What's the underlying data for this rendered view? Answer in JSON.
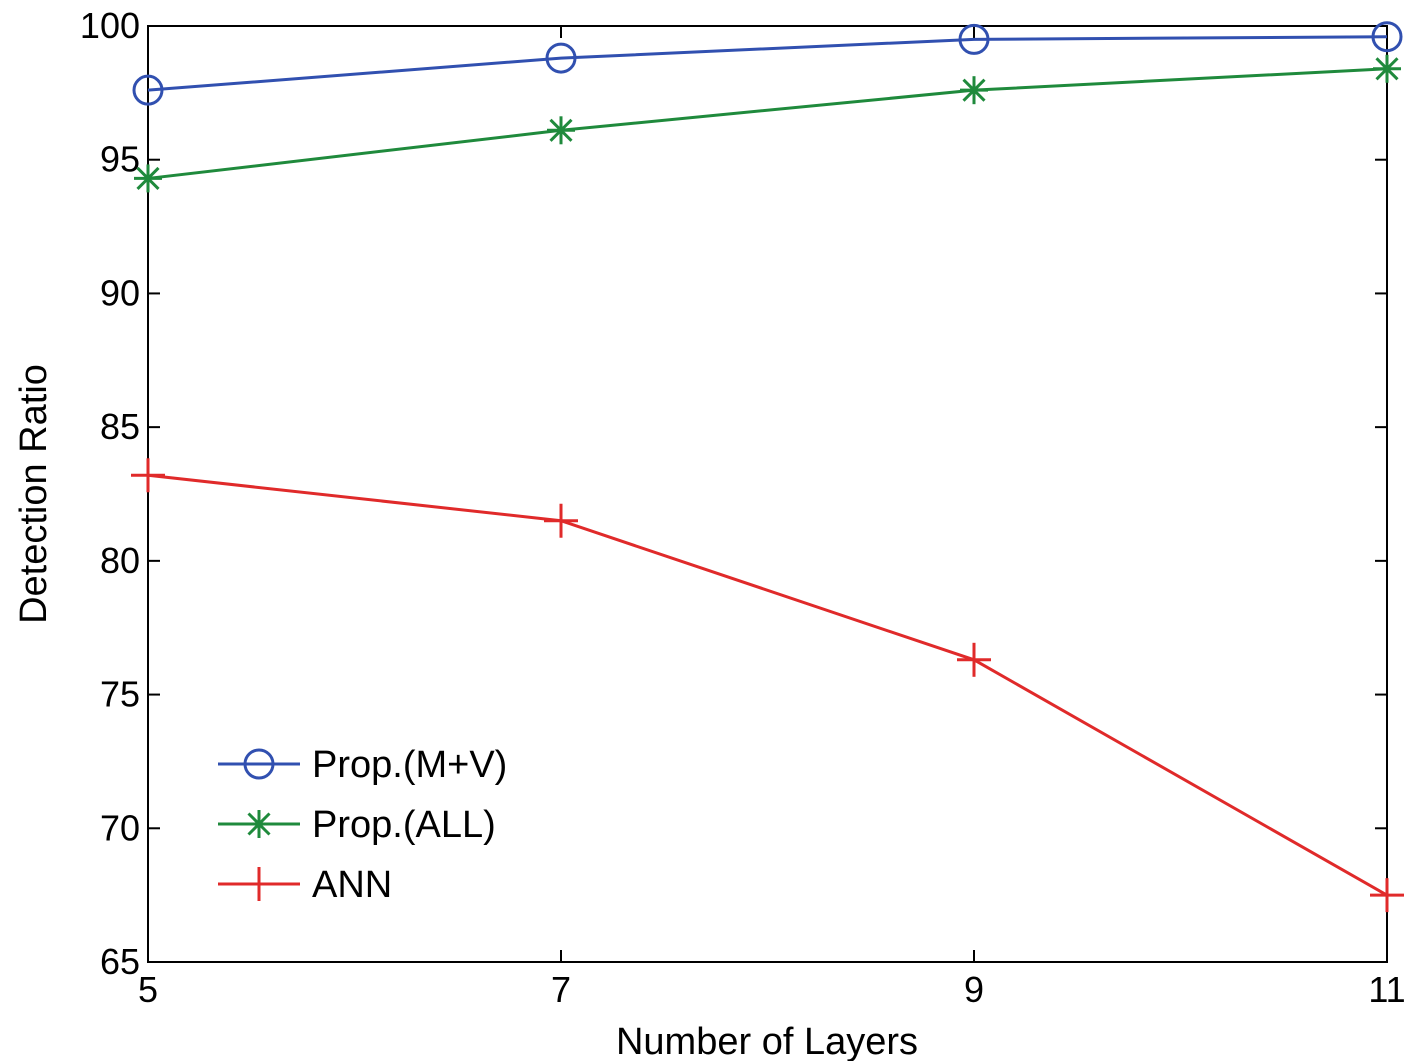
{
  "chart_data": {
    "type": "line",
    "title": "",
    "xlabel": "Number of Layers",
    "ylabel": "Detection Ratio",
    "xlim": [
      5,
      11
    ],
    "ylim": [
      65,
      100
    ],
    "xticks": [
      5,
      7,
      9,
      11
    ],
    "yticks": [
      65,
      70,
      75,
      80,
      85,
      90,
      95,
      100
    ],
    "grid": false,
    "legend_position": "lower-left",
    "x": [
      5,
      7,
      9,
      11
    ],
    "series": [
      {
        "name": "Prop.(M+V)",
        "values": [
          97.6,
          98.8,
          99.5,
          99.6
        ],
        "color": "#3150b0",
        "marker": "circle"
      },
      {
        "name": "Prop.(ALL)",
        "values": [
          94.3,
          96.1,
          97.6,
          98.4
        ],
        "color": "#1f8a3c",
        "marker": "asterisk"
      },
      {
        "name": "ANN",
        "values": [
          83.2,
          81.5,
          76.3,
          67.5
        ],
        "color": "#e02a2a",
        "marker": "plus"
      }
    ]
  }
}
